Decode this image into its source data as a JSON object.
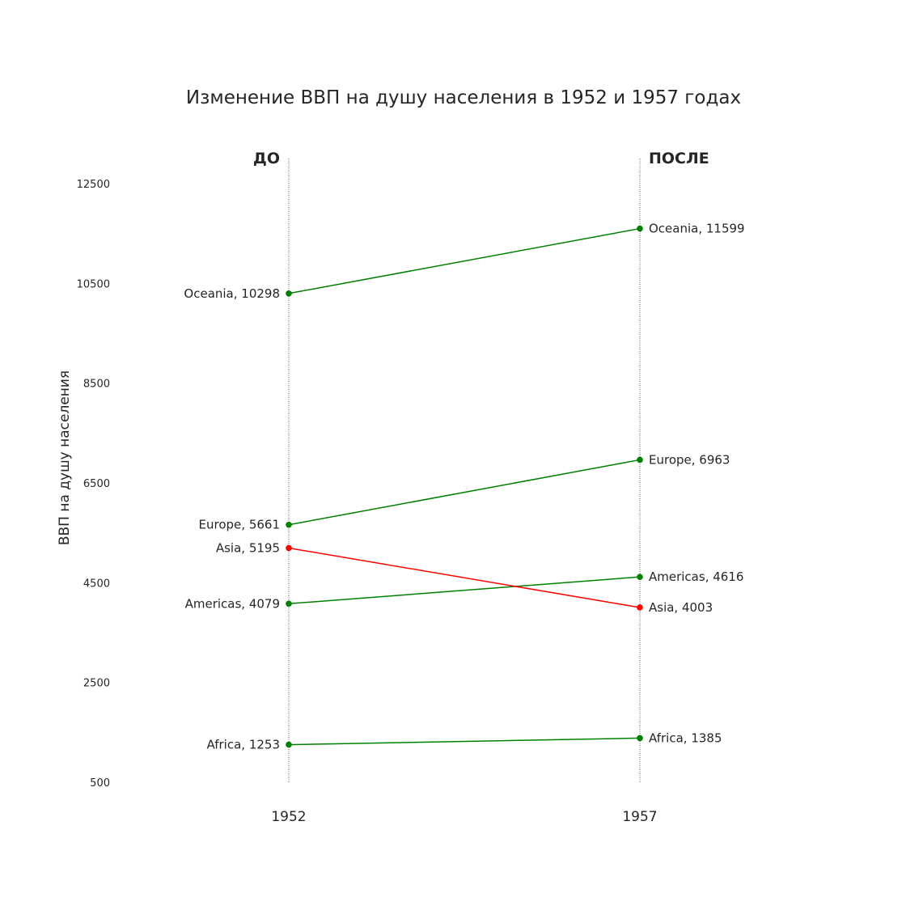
{
  "chart_data": {
    "type": "line",
    "title": "Изменение ВВП на душу населения в 1952 и 1957 годах",
    "ylabel": "ВВП на душу населения",
    "xlabel": "",
    "x": [
      "1952",
      "1957"
    ],
    "ylim": [
      500,
      13000
    ],
    "yticks": [
      500,
      2500,
      4500,
      6500,
      8500,
      10500,
      12500
    ],
    "yticklabels": [
      "500",
      "2500",
      "4500",
      "6500",
      "8500",
      "10500",
      "12500"
    ],
    "headers": {
      "left": "ДО",
      "right": "ПОСЛЕ"
    },
    "colors": {
      "increase": "#008000",
      "decrease": "#ff0000",
      "guide": "#333333"
    },
    "grid": false,
    "series": [
      {
        "name": "Africa",
        "values": [
          1253,
          1385
        ],
        "labels": [
          "Africa, 1253",
          "Africa, 1385"
        ],
        "trend": "increase"
      },
      {
        "name": "Americas",
        "values": [
          4079,
          4616
        ],
        "labels": [
          "Americas, 4079",
          "Americas, 4616"
        ],
        "trend": "increase"
      },
      {
        "name": "Asia",
        "values": [
          5195,
          4003
        ],
        "labels": [
          "Asia, 5195",
          "Asia, 4003"
        ],
        "trend": "decrease"
      },
      {
        "name": "Europe",
        "values": [
          5661,
          6963
        ],
        "labels": [
          "Europe, 5661",
          "Europe, 6963"
        ],
        "trend": "increase"
      },
      {
        "name": "Oceania",
        "values": [
          10298,
          11599
        ],
        "labels": [
          "Oceania, 10298",
          "Oceania, 11599"
        ],
        "trend": "increase"
      }
    ]
  }
}
